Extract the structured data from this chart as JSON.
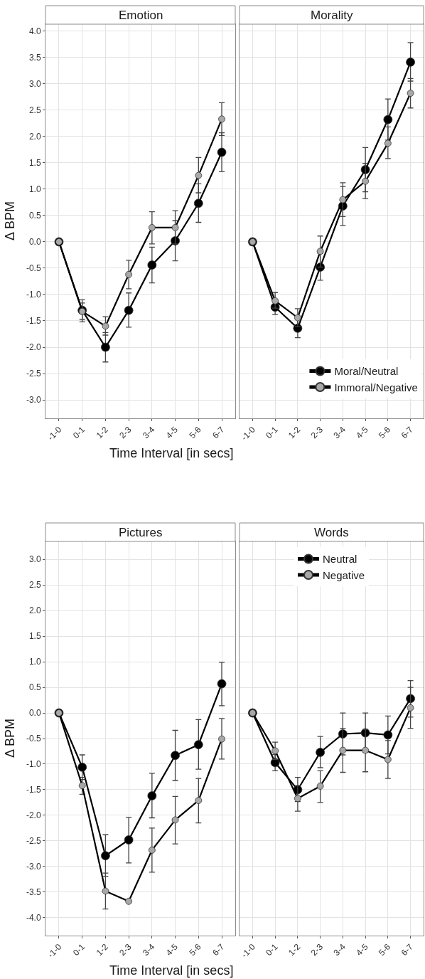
{
  "chart_data": [
    {
      "type": "line",
      "title": "Emotion",
      "xlabel": "Time Interval [in secs]",
      "ylabel": "Δ BPM",
      "categories": [
        "-1-0",
        "0-1",
        "1-2",
        "2-3",
        "3-4",
        "4-5",
        "5-6",
        "6-7"
      ],
      "ylim": [
        -3.35,
        4.13
      ],
      "yticks": [
        {
          "value": -3,
          "label": "-3.0"
        },
        {
          "value": -2.5,
          "label": "-2.5"
        },
        {
          "value": -2,
          "label": "-2.0"
        },
        {
          "value": -1.5,
          "label": "-1.5"
        },
        {
          "value": -1,
          "label": "-1.0"
        },
        {
          "value": -0.5,
          "label": "-0.5"
        },
        {
          "value": 0,
          "label": "0.0"
        },
        {
          "value": 0.5,
          "label": "0.5"
        },
        {
          "value": 1,
          "label": "1.0"
        },
        {
          "value": 1.5,
          "label": "1.5"
        },
        {
          "value": 2,
          "label": "2.0"
        },
        {
          "value": 2.5,
          "label": "2.5"
        },
        {
          "value": 3,
          "label": "3.0"
        },
        {
          "value": 3.5,
          "label": "3.5"
        },
        {
          "value": 4,
          "label": "4.0"
        }
      ],
      "grid": true,
      "marker": "circle",
      "series": [
        {
          "color": "#000000",
          "values": [
            0,
            -1.3,
            -2.0,
            -1.3,
            -0.44,
            0.02,
            0.73,
            1.7
          ],
          "errors": [
            null,
            [
              -1.52,
              -1.1
            ],
            [
              -2.28,
              -1.72
            ],
            [
              -1.62,
              -0.97
            ],
            [
              -0.78,
              -0.1
            ],
            [
              -0.36,
              0.4
            ],
            [
              0.37,
              1.1
            ],
            [
              1.33,
              2.07
            ]
          ]
        },
        {
          "color": "#a8a8a8",
          "values": [
            0,
            -1.32,
            -1.6,
            -0.62,
            0.27,
            0.27,
            1.26,
            2.33
          ],
          "errors": [
            null,
            [
              -1.47,
              -1.16
            ],
            [
              -1.77,
              -1.42
            ],
            [
              -0.89,
              -0.35
            ],
            [
              -0.04,
              0.57
            ],
            [
              -0.04,
              0.59
            ],
            [
              0.93,
              1.6
            ],
            [
              2.02,
              2.64
            ]
          ]
        }
      ]
    },
    {
      "type": "line",
      "title": "Morality",
      "categories": [
        "-1-0",
        "0-1",
        "1-2",
        "2-3",
        "3-4",
        "4-5",
        "5-6",
        "6-7"
      ],
      "ylim": [
        -3.35,
        4.13
      ],
      "yticks": [
        {
          "value": -3,
          "label": null
        },
        {
          "value": -2.5,
          "label": null
        },
        {
          "value": -2,
          "label": null
        },
        {
          "value": -1.5,
          "label": null
        },
        {
          "value": -1,
          "label": null
        },
        {
          "value": -0.5,
          "label": null
        },
        {
          "value": 0,
          "label": null
        },
        {
          "value": 0.5,
          "label": null
        },
        {
          "value": 1,
          "label": null
        },
        {
          "value": 1.5,
          "label": null
        },
        {
          "value": 2,
          "label": null
        },
        {
          "value": 2.5,
          "label": null
        },
        {
          "value": 3,
          "label": null
        },
        {
          "value": 3.5,
          "label": null
        },
        {
          "value": 4,
          "label": null
        }
      ],
      "grid": true,
      "marker": "circle",
      "tick_labels": "x",
      "legend": "bottom right",
      "series": [
        {
          "name": "Moral/Neutral",
          "color": "#000000",
          "values": [
            0,
            -1.24,
            -1.64,
            -0.48,
            0.68,
            1.37,
            2.32,
            3.41
          ],
          "errors": [
            null,
            [
              -1.38,
              -1.1
            ],
            [
              -1.82,
              -1.46
            ],
            [
              -0.73,
              -0.22
            ],
            [
              0.31,
              1.05
            ],
            [
              0.95,
              1.79
            ],
            [
              1.93,
              2.71
            ],
            [
              3.05,
              3.78
            ]
          ]
        },
        {
          "name": "Immoral/Negative",
          "color": "#a8a8a8",
          "values": [
            0,
            -1.12,
            -1.44,
            -0.18,
            0.8,
            1.15,
            1.87,
            2.82
          ],
          "errors": [
            null,
            [
              -1.26,
              -0.96
            ],
            [
              -1.61,
              -1.27
            ],
            [
              -0.48,
              0.11
            ],
            [
              0.48,
              1.12
            ],
            [
              0.82,
              1.49
            ],
            [
              1.58,
              2.18
            ],
            [
              2.54,
              3.1
            ]
          ]
        }
      ]
    },
    {
      "type": "line",
      "title": "Pictures",
      "xlabel": "Time Interval [in secs]",
      "ylabel": "Δ BPM",
      "categories": [
        "-1-0",
        "0-1",
        "1-2",
        "2-3",
        "3-4",
        "4-5",
        "5-6",
        "6-7"
      ],
      "ylim": [
        -4.35,
        3.35
      ],
      "yticks": [
        {
          "value": -4,
          "label": "-4.0"
        },
        {
          "value": -3.5,
          "label": "-3.5"
        },
        {
          "value": -3,
          "label": "-3.0"
        },
        {
          "value": -2.5,
          "label": "-2.5"
        },
        {
          "value": -2,
          "label": "-2.0"
        },
        {
          "value": -1.5,
          "label": "-1.5"
        },
        {
          "value": -1,
          "label": "-1.0"
        },
        {
          "value": -0.5,
          "label": "-0.5"
        },
        {
          "value": 0,
          "label": "0.0"
        },
        {
          "value": 0.5,
          "label": "0.5"
        },
        {
          "value": 1,
          "label": "1.0"
        },
        {
          "value": 1.5,
          "label": "1.5"
        },
        {
          "value": 2,
          "label": "2.0"
        },
        {
          "value": 2.5,
          "label": "2.5"
        },
        {
          "value": 3,
          "label": "3.0"
        }
      ],
      "grid": true,
      "marker": "circle",
      "series": [
        {
          "color": "#000000",
          "values": [
            0,
            -1.06,
            -2.79,
            -2.48,
            -1.62,
            -0.83,
            -0.62,
            0.57
          ],
          "errors": [
            null,
            [
              -1.3,
              -0.82
            ],
            [
              -3.19,
              -2.38
            ],
            [
              -2.93,
              -2.04
            ],
            [
              -2.05,
              -1.18
            ],
            [
              -1.32,
              -0.34
            ],
            [
              -1.1,
              -0.13
            ],
            [
              0.14,
              0.99
            ]
          ]
        },
        {
          "color": "#a8a8a8",
          "values": [
            0,
            -1.42,
            -3.48,
            -3.68,
            -2.68,
            -2.09,
            -1.71,
            -0.51
          ],
          "errors": [
            null,
            [
              -1.59,
              -1.26
            ],
            [
              -3.83,
              -3.13
            ],
            null,
            [
              -3.11,
              -2.25
            ],
            [
              -2.56,
              -1.63
            ],
            [
              -2.15,
              -1.28
            ],
            [
              -0.9,
              -0.11
            ]
          ]
        }
      ]
    },
    {
      "type": "line",
      "title": "Words",
      "categories": [
        "-1-0",
        "0-1",
        "1-2",
        "2-3",
        "3-4",
        "4-5",
        "5-6",
        "6-7"
      ],
      "ylim": [
        -4.35,
        3.35
      ],
      "yticks": [
        {
          "value": -4,
          "label": null
        },
        {
          "value": -3.5,
          "label": null
        },
        {
          "value": -3,
          "label": null
        },
        {
          "value": -2.5,
          "label": null
        },
        {
          "value": -2,
          "label": null
        },
        {
          "value": -1.5,
          "label": null
        },
        {
          "value": -1,
          "label": null
        },
        {
          "value": -0.5,
          "label": null
        },
        {
          "value": 0,
          "label": null
        },
        {
          "value": 0.5,
          "label": null
        },
        {
          "value": 1,
          "label": null
        },
        {
          "value": 1.5,
          "label": null
        },
        {
          "value": 2,
          "label": null
        },
        {
          "value": 2.5,
          "label": null
        },
        {
          "value": 3,
          "label": null
        }
      ],
      "grid": true,
      "marker": "circle",
      "tick_labels": "x",
      "legend": "top",
      "series": [
        {
          "name": "Neutral",
          "color": "#000000",
          "values": [
            0,
            -0.97,
            -1.5,
            -0.77,
            -0.41,
            -0.39,
            -0.43,
            0.28
          ],
          "errors": [
            null,
            [
              -1.13,
              -0.81
            ],
            [
              -1.73,
              -1.26
            ],
            [
              -1.07,
              -0.46
            ],
            [
              -0.82,
              0
            ],
            [
              -0.77,
              0
            ],
            [
              -0.8,
              -0.06
            ],
            [
              -0.08,
              0.63
            ]
          ]
        },
        {
          "name": "Negative",
          "color": "#a8a8a8",
          "values": [
            0,
            -0.74,
            -1.67,
            -1.43,
            -0.73,
            -0.73,
            -0.91,
            0.1
          ],
          "errors": [
            null,
            [
              -0.91,
              -0.57
            ],
            [
              -1.92,
              -1.42
            ],
            [
              -1.75,
              -1.13
            ],
            [
              -1.16,
              -0.3
            ],
            [
              -1.15,
              -0.32
            ],
            [
              -1.28,
              -0.54
            ],
            [
              -0.3,
              0.5
            ]
          ]
        }
      ]
    }
  ]
}
